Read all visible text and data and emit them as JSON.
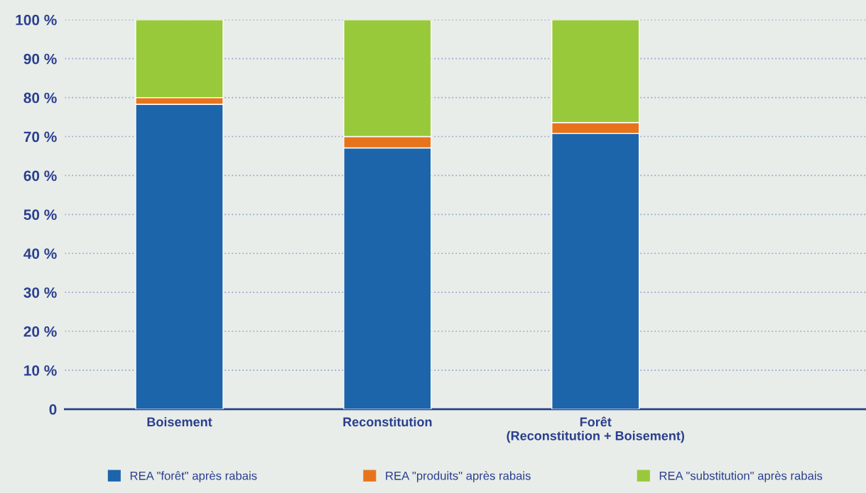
{
  "chart_data": {
    "type": "bar",
    "stacked": true,
    "categories": [
      "Boisement",
      "Reconstitution",
      "Forêt\n(Reconstitution + Boisement)"
    ],
    "series": [
      {
        "name": "REA \"forêt\" après rabais",
        "color": "#1c65ab",
        "values": [
          78.3,
          67.1,
          70.8
        ]
      },
      {
        "name": "REA \"produits\" après rabais",
        "color": "#e8731d",
        "values": [
          1.7,
          2.9,
          2.8
        ]
      },
      {
        "name": "REA \"substitution\" après rabais",
        "color": "#98c93a",
        "values": [
          20,
          30,
          26.4
        ]
      }
    ],
    "ylim": [
      0,
      100
    ],
    "yticks": [
      {
        "value": 0,
        "label": "0"
      },
      {
        "value": 10,
        "label": "10 %"
      },
      {
        "value": 20,
        "label": "20 %"
      },
      {
        "value": 30,
        "label": "30 %"
      },
      {
        "value": 40,
        "label": "40 %"
      },
      {
        "value": 50,
        "label": "50 %"
      },
      {
        "value": 60,
        "label": "60 %"
      },
      {
        "value": 70,
        "label": "70 %"
      },
      {
        "value": 80,
        "label": "80 %"
      },
      {
        "value": 90,
        "label": "90 %"
      },
      {
        "value": 100,
        "label": "100 %"
      }
    ],
    "grid": "y",
    "legend": "bottom"
  }
}
